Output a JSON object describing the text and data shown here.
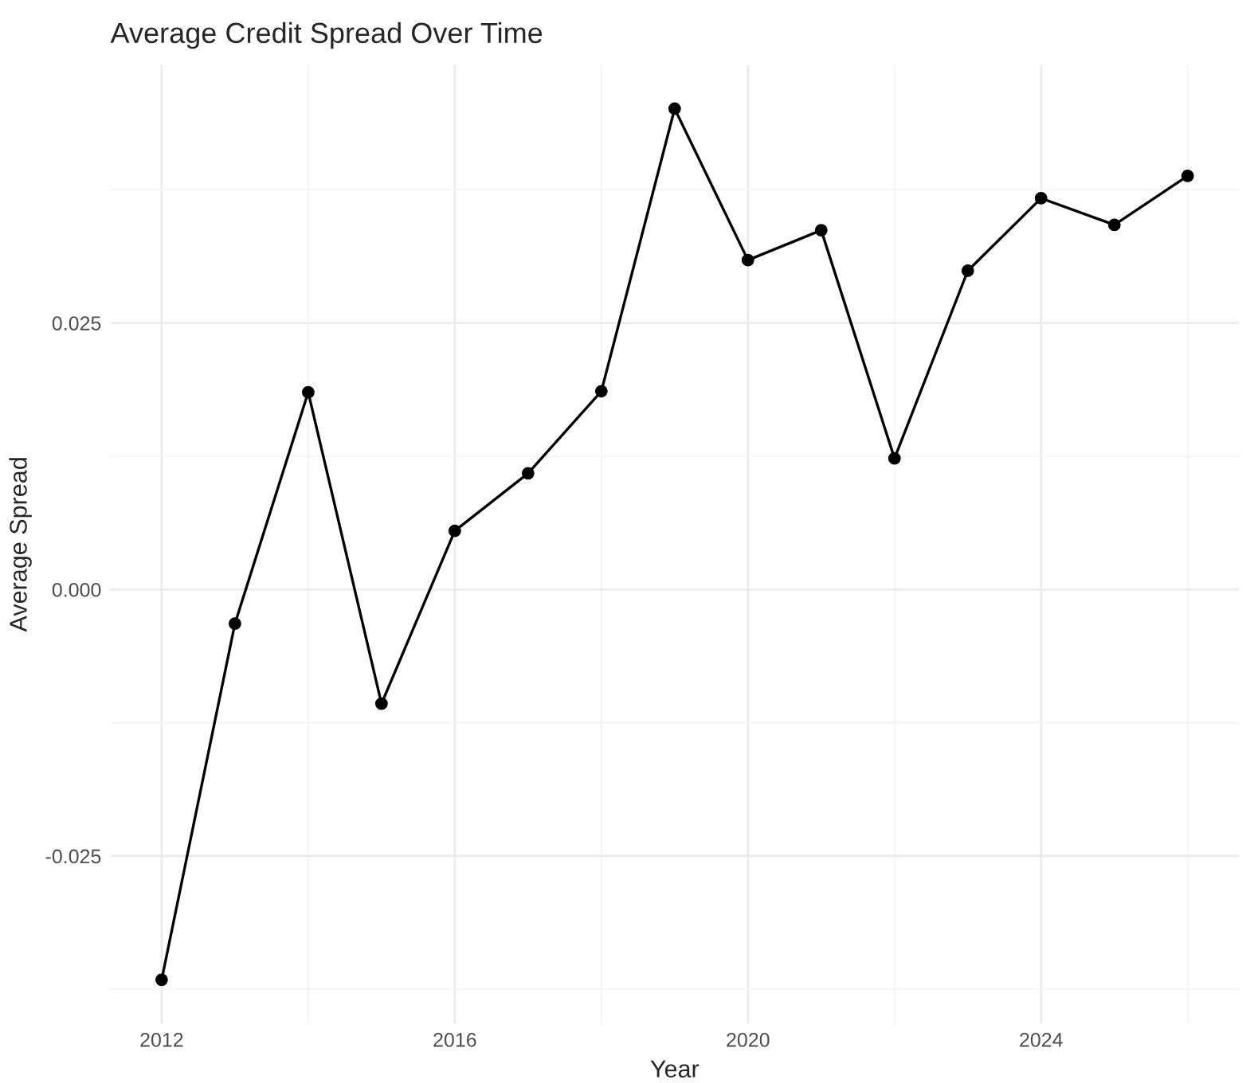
{
  "chart_data": {
    "type": "line",
    "title": "Average Credit Spread Over Time",
    "xlabel": "Year",
    "ylabel": "Average Spread",
    "x": [
      2012,
      2013,
      2014,
      2015,
      2016,
      2017,
      2018,
      2019,
      2020,
      2021,
      2022,
      2023,
      2024,
      2025,
      2026
    ],
    "series": [
      {
        "color": "#000000",
        "values": [
          -0.0366,
          -0.0032,
          0.0185,
          -0.0107,
          0.0055,
          0.0109,
          0.0186,
          0.0451,
          0.0309,
          0.0337,
          0.0123,
          0.0299,
          0.0367,
          0.0342,
          0.0388
        ]
      }
    ],
    "xlim": [
      2011.3,
      2026.7
    ],
    "xticks": [
      2012,
      2016,
      2020,
      2024
    ],
    "ylim": [
      -0.0407,
      0.0492
    ],
    "yticks": [
      {
        "value": -0.025,
        "label": "-0.025"
      },
      {
        "value": 0.0,
        "label": "0.000"
      },
      {
        "value": 0.025,
        "label": "0.025"
      }
    ],
    "grid": true,
    "marker": "circle",
    "line_style": "solid"
  }
}
